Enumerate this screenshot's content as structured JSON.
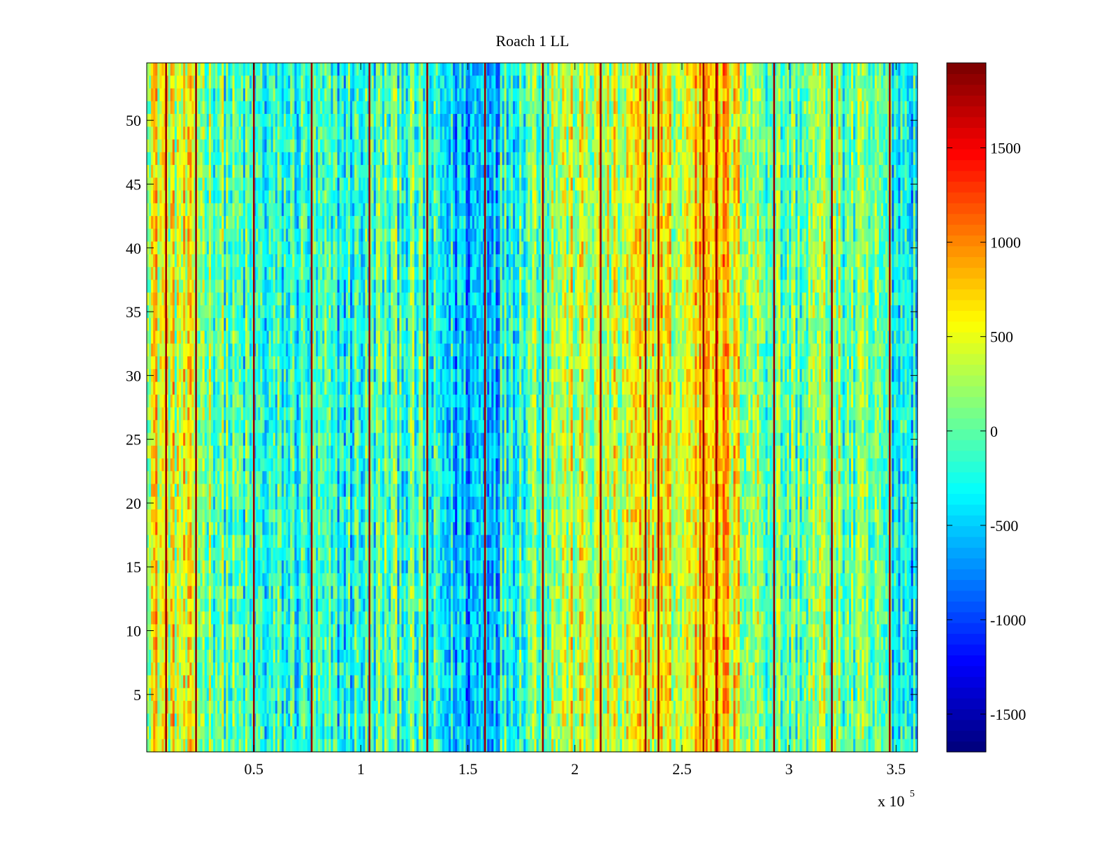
{
  "chart_data": {
    "type": "heatmap",
    "title": "Roach 1 LL",
    "xlabel": "",
    "ylabel": "",
    "x_multiplier_label": "x 10",
    "x_multiplier_exp": "5",
    "xlim": [
      0,
      3.6
    ],
    "ylim": [
      0.5,
      54.5
    ],
    "x_ticks": [
      0.5,
      1,
      1.5,
      2,
      2.5,
      3,
      3.5
    ],
    "x_tick_labels": [
      "0.5",
      "1",
      "1.5",
      "2",
      "2.5",
      "3",
      "3.5"
    ],
    "y_ticks": [
      5,
      10,
      15,
      20,
      25,
      30,
      35,
      40,
      45,
      50
    ],
    "y_tick_labels": [
      "5",
      "10",
      "15",
      "20",
      "25",
      "30",
      "35",
      "40",
      "45",
      "50"
    ],
    "colormap": "jet",
    "colorbar": {
      "clim": [
        -1700,
        1950
      ],
      "ticks": [
        -1500,
        -1000,
        -500,
        0,
        500,
        1000,
        1500
      ],
      "tick_labels": [
        "-1500",
        "-1000",
        "-500",
        "0",
        "500",
        "1000",
        "1500"
      ]
    },
    "n_rows": 54,
    "n_cols": 360,
    "column_profile": {
      "note": "approximate mean intensity by x position (x in units of 10^5)",
      "x": [
        0.0,
        0.1,
        0.2,
        0.3,
        0.4,
        0.5,
        0.6,
        0.7,
        0.8,
        0.9,
        1.0,
        1.1,
        1.2,
        1.3,
        1.4,
        1.5,
        1.6,
        1.7,
        1.8,
        1.9,
        2.0,
        2.1,
        2.2,
        2.3,
        2.4,
        2.5,
        2.6,
        2.65,
        2.7,
        2.8,
        2.9,
        3.0,
        3.1,
        3.2,
        3.3,
        3.4,
        3.5,
        3.6
      ],
      "values": [
        600,
        500,
        350,
        150,
        -100,
        -250,
        -300,
        -200,
        -250,
        -300,
        -200,
        -100,
        -50,
        -250,
        -450,
        -600,
        -450,
        -150,
        100,
        250,
        350,
        300,
        250,
        500,
        600,
        300,
        900,
        1000,
        700,
        300,
        100,
        -50,
        100,
        150,
        0,
        -100,
        -200,
        -300
      ]
    },
    "highlight_columns": {
      "note": "narrow high-value (dark red) vertical lines, x in units of 10^5",
      "x": [
        0.09,
        0.23,
        0.5,
        0.77,
        1.04,
        1.31,
        1.58,
        1.85,
        2.12,
        2.33,
        2.39,
        2.6,
        2.66,
        2.93,
        3.2,
        3.47
      ]
    }
  }
}
